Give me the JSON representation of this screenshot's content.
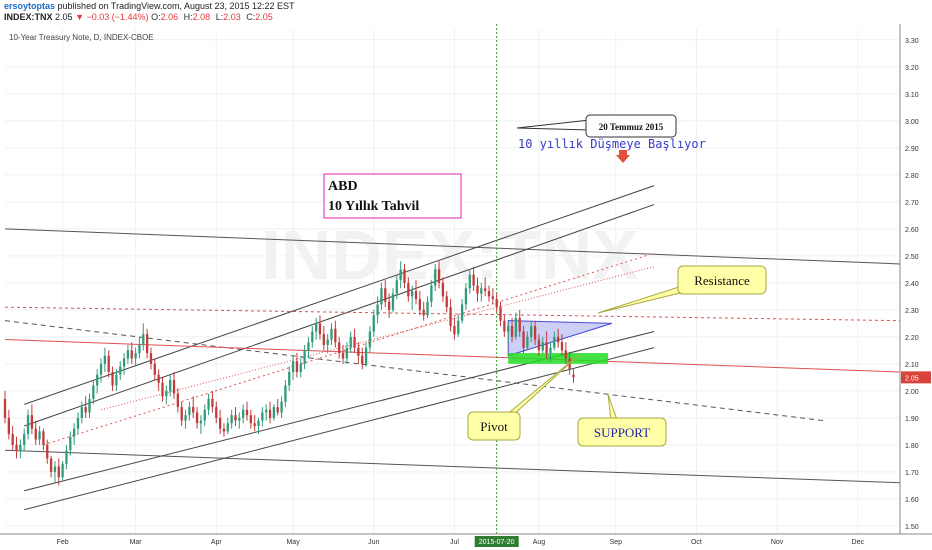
{
  "header": {
    "author": "ersoytoptas",
    "published_text": "published on TradingView.com, August 23, 2015 12:22 EST",
    "symbol": "INDEX:TNX",
    "last": "2.05",
    "change": "−0.03 (−1.44%)",
    "open_label": "O:",
    "open": "2.06",
    "high_label": "H:",
    "high": "2.08",
    "low_label": "L:",
    "low": "2.03",
    "close_label": "C:",
    "close": "2.05"
  },
  "chart_title": "10-Year Treasury Note, D, INDEX-CBOE",
  "chart_data": {
    "type": "candlestick",
    "yticks": [
      "1.50",
      "1.60",
      "1.70",
      "1.80",
      "1.90",
      "2.00",
      "2.10",
      "2.20",
      "2.30",
      "2.40",
      "2.50",
      "2.60",
      "2.70",
      "2.80",
      "2.90",
      "3.00",
      "3.10",
      "3.20",
      "3.30"
    ],
    "ylim": [
      1.47,
      3.34
    ],
    "xlim": [
      0,
      233
    ],
    "xticks": [
      {
        "label": "Feb",
        "x": 15
      },
      {
        "label": "Mar",
        "x": 34
      },
      {
        "label": "Apr",
        "x": 55
      },
      {
        "label": "May",
        "x": 75
      },
      {
        "label": "Jun",
        "x": 96
      },
      {
        "label": "Jul",
        "x": 117
      },
      {
        "label": "Aug",
        "x": 139
      },
      {
        "label": "Sep",
        "x": 159
      },
      {
        "label": "Oct",
        "x": 180
      },
      {
        "label": "Nov",
        "x": 201
      },
      {
        "label": "Dec",
        "x": 222
      }
    ],
    "current_price": "2.05",
    "marker_date": "2015-07-20",
    "marker_x": 128,
    "candles": [
      [
        0,
        1.97,
        2.0,
        1.88,
        1.9
      ],
      [
        1,
        1.9,
        1.93,
        1.82,
        1.84
      ],
      [
        2,
        1.84,
        1.87,
        1.78,
        1.8
      ],
      [
        3,
        1.8,
        1.83,
        1.75,
        1.78
      ],
      [
        4,
        1.78,
        1.82,
        1.75,
        1.8
      ],
      [
        5,
        1.8,
        1.86,
        1.78,
        1.84
      ],
      [
        6,
        1.84,
        1.93,
        1.82,
        1.91
      ],
      [
        7,
        1.91,
        1.95,
        1.84,
        1.86
      ],
      [
        8,
        1.86,
        1.89,
        1.8,
        1.82
      ],
      [
        9,
        1.82,
        1.87,
        1.8,
        1.85
      ],
      [
        10,
        1.85,
        1.86,
        1.78,
        1.8
      ],
      [
        11,
        1.8,
        1.82,
        1.73,
        1.75
      ],
      [
        12,
        1.75,
        1.76,
        1.68,
        1.7
      ],
      [
        13,
        1.7,
        1.74,
        1.66,
        1.72
      ],
      [
        14,
        1.72,
        1.75,
        1.65,
        1.68
      ],
      [
        15,
        1.68,
        1.74,
        1.67,
        1.73
      ],
      [
        16,
        1.73,
        1.8,
        1.71,
        1.78
      ],
      [
        17,
        1.78,
        1.85,
        1.76,
        1.83
      ],
      [
        18,
        1.83,
        1.88,
        1.8,
        1.86
      ],
      [
        19,
        1.86,
        1.92,
        1.84,
        1.9
      ],
      [
        20,
        1.9,
        1.96,
        1.88,
        1.94
      ],
      [
        21,
        1.94,
        1.98,
        1.9,
        1.92
      ],
      [
        22,
        1.92,
        1.99,
        1.9,
        1.97
      ],
      [
        23,
        1.97,
        2.04,
        1.95,
        2.02
      ],
      [
        24,
        2.02,
        2.08,
        1.99,
        2.06
      ],
      [
        25,
        2.06,
        2.12,
        2.03,
        2.1
      ],
      [
        26,
        2.1,
        2.16,
        2.07,
        2.13
      ],
      [
        27,
        2.13,
        2.15,
        2.05,
        2.07
      ],
      [
        28,
        2.07,
        2.09,
        2.0,
        2.02
      ],
      [
        29,
        2.02,
        2.08,
        2.0,
        2.06
      ],
      [
        30,
        2.06,
        2.11,
        2.04,
        2.09
      ],
      [
        31,
        2.09,
        2.14,
        2.06,
        2.12
      ],
      [
        32,
        2.12,
        2.17,
        2.1,
        2.15
      ],
      [
        33,
        2.15,
        2.18,
        2.1,
        2.12
      ],
      [
        34,
        2.12,
        2.16,
        2.09,
        2.14
      ],
      [
        35,
        2.14,
        2.2,
        2.12,
        2.17
      ],
      [
        36,
        2.17,
        2.25,
        2.15,
        2.21
      ],
      [
        37,
        2.21,
        2.23,
        2.12,
        2.14
      ],
      [
        38,
        2.14,
        2.16,
        2.08,
        2.1
      ],
      [
        39,
        2.1,
        2.12,
        2.04,
        2.06
      ],
      [
        40,
        2.06,
        2.08,
        2.0,
        2.03
      ],
      [
        41,
        2.03,
        2.05,
        1.96,
        1.98
      ],
      [
        42,
        1.98,
        2.02,
        1.95,
        2.0
      ],
      [
        43,
        2.0,
        2.06,
        1.98,
        2.04
      ],
      [
        44,
        2.04,
        2.07,
        1.97,
        1.99
      ],
      [
        45,
        1.99,
        2.01,
        1.92,
        1.94
      ],
      [
        46,
        1.94,
        1.96,
        1.87,
        1.89
      ],
      [
        47,
        1.89,
        1.93,
        1.86,
        1.91
      ],
      [
        48,
        1.91,
        1.96,
        1.89,
        1.94
      ],
      [
        49,
        1.94,
        1.98,
        1.9,
        1.92
      ],
      [
        50,
        1.92,
        1.94,
        1.86,
        1.88
      ],
      [
        51,
        1.88,
        1.91,
        1.84,
        1.89
      ],
      [
        52,
        1.89,
        1.95,
        1.87,
        1.93
      ],
      [
        53,
        1.93,
        1.99,
        1.91,
        1.97
      ],
      [
        54,
        1.97,
        2.0,
        1.92,
        1.94
      ],
      [
        55,
        1.94,
        1.96,
        1.88,
        1.9
      ],
      [
        56,
        1.9,
        1.93,
        1.84,
        1.86
      ],
      [
        57,
        1.86,
        1.88,
        1.83,
        1.85
      ],
      [
        58,
        1.85,
        1.9,
        1.84,
        1.88
      ],
      [
        59,
        1.88,
        1.93,
        1.86,
        1.91
      ],
      [
        60,
        1.91,
        1.94,
        1.87,
        1.89
      ],
      [
        61,
        1.89,
        1.92,
        1.86,
        1.9
      ],
      [
        62,
        1.9,
        1.95,
        1.88,
        1.93
      ],
      [
        63,
        1.93,
        1.96,
        1.89,
        1.91
      ],
      [
        64,
        1.91,
        1.93,
        1.86,
        1.88
      ],
      [
        65,
        1.88,
        1.91,
        1.85,
        1.87
      ],
      [
        66,
        1.87,
        1.9,
        1.84,
        1.89
      ],
      [
        67,
        1.89,
        1.94,
        1.87,
        1.92
      ],
      [
        68,
        1.92,
        1.95,
        1.89,
        1.93
      ],
      [
        69,
        1.93,
        1.96,
        1.88,
        1.9
      ],
      [
        70,
        1.9,
        1.95,
        1.89,
        1.94
      ],
      [
        71,
        1.94,
        1.97,
        1.91,
        1.92
      ],
      [
        72,
        1.92,
        1.98,
        1.9,
        1.96
      ],
      [
        73,
        1.96,
        2.04,
        1.94,
        2.02
      ],
      [
        74,
        2.02,
        2.09,
        2.0,
        2.07
      ],
      [
        75,
        2.07,
        2.13,
        2.04,
        2.11
      ],
      [
        76,
        2.11,
        2.14,
        2.05,
        2.07
      ],
      [
        77,
        2.07,
        2.12,
        2.05,
        2.1
      ],
      [
        78,
        2.1,
        2.17,
        2.08,
        2.15
      ],
      [
        79,
        2.15,
        2.2,
        2.12,
        2.18
      ],
      [
        80,
        2.18,
        2.24,
        2.16,
        2.22
      ],
      [
        81,
        2.22,
        2.27,
        2.19,
        2.25
      ],
      [
        82,
        2.25,
        2.28,
        2.19,
        2.21
      ],
      [
        83,
        2.21,
        2.24,
        2.15,
        2.17
      ],
      [
        84,
        2.17,
        2.21,
        2.14,
        2.19
      ],
      [
        85,
        2.19,
        2.25,
        2.17,
        2.23
      ],
      [
        86,
        2.23,
        2.26,
        2.16,
        2.18
      ],
      [
        87,
        2.18,
        2.2,
        2.12,
        2.14
      ],
      [
        88,
        2.14,
        2.17,
        2.1,
        2.12
      ],
      [
        89,
        2.12,
        2.18,
        2.1,
        2.16
      ],
      [
        90,
        2.16,
        2.22,
        2.14,
        2.2
      ],
      [
        91,
        2.2,
        2.23,
        2.14,
        2.16
      ],
      [
        92,
        2.16,
        2.18,
        2.1,
        2.13
      ],
      [
        93,
        2.13,
        2.16,
        2.08,
        2.1
      ],
      [
        94,
        2.1,
        2.18,
        2.09,
        2.16
      ],
      [
        95,
        2.16,
        2.24,
        2.14,
        2.22
      ],
      [
        96,
        2.22,
        2.3,
        2.2,
        2.28
      ],
      [
        97,
        2.28,
        2.35,
        2.25,
        2.32
      ],
      [
        98,
        2.32,
        2.4,
        2.3,
        2.38
      ],
      [
        99,
        2.38,
        2.41,
        2.31,
        2.33
      ],
      [
        100,
        2.33,
        2.36,
        2.27,
        2.3
      ],
      [
        101,
        2.3,
        2.38,
        2.29,
        2.36
      ],
      [
        102,
        2.36,
        2.43,
        2.34,
        2.41
      ],
      [
        103,
        2.41,
        2.48,
        2.38,
        2.45
      ],
      [
        104,
        2.45,
        2.47,
        2.38,
        2.4
      ],
      [
        105,
        2.4,
        2.42,
        2.33,
        2.35
      ],
      [
        106,
        2.35,
        2.39,
        2.3,
        2.37
      ],
      [
        107,
        2.37,
        2.41,
        2.32,
        2.34
      ],
      [
        108,
        2.34,
        2.37,
        2.28,
        2.3
      ],
      [
        109,
        2.3,
        2.33,
        2.26,
        2.28
      ],
      [
        110,
        2.28,
        2.35,
        2.27,
        2.33
      ],
      [
        111,
        2.33,
        2.41,
        2.31,
        2.39
      ],
      [
        112,
        2.39,
        2.47,
        2.37,
        2.45
      ],
      [
        113,
        2.45,
        2.48,
        2.38,
        2.4
      ],
      [
        114,
        2.4,
        2.42,
        2.33,
        2.35
      ],
      [
        115,
        2.35,
        2.37,
        2.29,
        2.31
      ],
      [
        116,
        2.31,
        2.34,
        2.22,
        2.24
      ],
      [
        117,
        2.24,
        2.27,
        2.19,
        2.21
      ],
      [
        118,
        2.21,
        2.28,
        2.2,
        2.26
      ],
      [
        119,
        2.26,
        2.34,
        2.25,
        2.32
      ],
      [
        120,
        2.32,
        2.4,
        2.3,
        2.38
      ],
      [
        121,
        2.38,
        2.45,
        2.36,
        2.43
      ],
      [
        122,
        2.43,
        2.46,
        2.37,
        2.39
      ],
      [
        123,
        2.39,
        2.42,
        2.33,
        2.36
      ],
      [
        124,
        2.36,
        2.4,
        2.33,
        2.38
      ],
      [
        125,
        2.38,
        2.42,
        2.35,
        2.37
      ],
      [
        126,
        2.37,
        2.39,
        2.33,
        2.35
      ],
      [
        127,
        2.35,
        2.38,
        2.32,
        2.34
      ],
      [
        128,
        2.34,
        2.36,
        2.29,
        2.31
      ],
      [
        129,
        2.31,
        2.33,
        2.24,
        2.26
      ],
      [
        130,
        2.26,
        2.28,
        2.2,
        2.22
      ],
      [
        131,
        2.22,
        2.25,
        2.18,
        2.24
      ],
      [
        132,
        2.24,
        2.27,
        2.18,
        2.2
      ],
      [
        133,
        2.2,
        2.29,
        2.19,
        2.27
      ],
      [
        134,
        2.27,
        2.3,
        2.2,
        2.22
      ],
      [
        135,
        2.22,
        2.24,
        2.14,
        2.16
      ],
      [
        136,
        2.16,
        2.22,
        2.15,
        2.2
      ],
      [
        137,
        2.2,
        2.26,
        2.18,
        2.24
      ],
      [
        138,
        2.24,
        2.26,
        2.17,
        2.19
      ],
      [
        139,
        2.19,
        2.21,
        2.13,
        2.15
      ],
      [
        140,
        2.15,
        2.2,
        2.14,
        2.18
      ],
      [
        141,
        2.18,
        2.22,
        2.12,
        2.14
      ],
      [
        142,
        2.14,
        2.18,
        2.11,
        2.16
      ],
      [
        143,
        2.16,
        2.22,
        2.15,
        2.2
      ],
      [
        144,
        2.2,
        2.23,
        2.16,
        2.18
      ],
      [
        145,
        2.18,
        2.21,
        2.13,
        2.15
      ],
      [
        146,
        2.15,
        2.18,
        2.1,
        2.12
      ],
      [
        147,
        2.12,
        2.14,
        2.06,
        2.08
      ],
      [
        148,
        2.06,
        2.08,
        2.03,
        2.05
      ]
    ],
    "lines": [
      {
        "x1": 0,
        "y1": 2.6,
        "x2": 233,
        "y2": 2.47,
        "color": "#555555",
        "dash": ""
      },
      {
        "x1": 0,
        "y1": 1.78,
        "x2": 233,
        "y2": 1.66,
        "color": "#555555",
        "dash": ""
      },
      {
        "x1": 5,
        "y1": 1.95,
        "x2": 169,
        "y2": 2.76,
        "color": "#444444",
        "dash": ""
      },
      {
        "x1": 5,
        "y1": 1.87,
        "x2": 169,
        "y2": 2.69,
        "color": "#444444",
        "dash": ""
      },
      {
        "x1": 5,
        "y1": 1.63,
        "x2": 169,
        "y2": 2.22,
        "color": "#444444",
        "dash": ""
      },
      {
        "x1": 5,
        "y1": 1.56,
        "x2": 169,
        "y2": 2.16,
        "color": "#444444",
        "dash": ""
      },
      {
        "x1": 0,
        "y1": 2.26,
        "x2": 213,
        "y2": 1.89,
        "color": "#555555",
        "dash": "5,4"
      },
      {
        "x1": 0,
        "y1": 2.31,
        "x2": 233,
        "y2": 2.26,
        "color": "#e05050",
        "dash": "3,3"
      },
      {
        "x1": 0,
        "y1": 2.19,
        "x2": 233,
        "y2": 2.07,
        "color": "#e05050",
        "dash": ""
      },
      {
        "x1": 10,
        "y1": 1.8,
        "x2": 169,
        "y2": 2.51,
        "color": "#e05050",
        "dash": "2,3"
      },
      {
        "x1": 25,
        "y1": 1.93,
        "x2": 169,
        "y2": 2.46,
        "color": "#e05050",
        "dash": "1,2"
      }
    ],
    "triangle": {
      "points": [
        [
          131,
          2.26
        ],
        [
          158,
          2.25
        ],
        [
          131,
          2.13
        ]
      ],
      "fill": "#aab0f0",
      "stroke": "#4a4ad0"
    },
    "support_box": {
      "x1": 131,
      "x2": 157,
      "y1": 2.1,
      "y2": 2.14,
      "fill": "#22dd22"
    },
    "annotations": {
      "date_callout": "20 Temmuz 2015",
      "falling_note": "10 yıllık Düşmeye Başlıyor",
      "box_title_line1": "ABD",
      "box_title_line2": "10 Yıllık Tahvil",
      "resistance": "Resistance",
      "pivot": "Pivot",
      "support": "SUPPORT"
    },
    "colors": {
      "up": "#2e9c7a",
      "down": "#c23a3a",
      "grid": "#eef0f2",
      "callout_fill": "#ffffa8",
      "callout_stroke": "#a8a840",
      "box_border": "#e020b0",
      "marker": "#2aa02a"
    }
  }
}
